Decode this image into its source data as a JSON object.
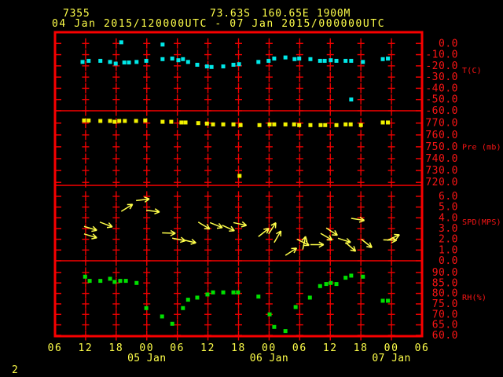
{
  "header": {
    "station_id": "7355",
    "latitude": "73.63S",
    "longitude": "160.65E",
    "elevation": "1900M",
    "period": "04 Jan 2015/120000UTC - 07 Jan 2015/000000UTC"
  },
  "page_number": "2",
  "colors": {
    "background": "#000000",
    "border_red": "#f80000",
    "grid_red": "#ee0000",
    "tick_text_red": "#fb1515",
    "label_yellow": "#ffff4a",
    "temperature_cyan": "#00e8e8",
    "pressure_yellow": "#f2f200",
    "wind_yellow": "#ffff4a",
    "humidity_green": "#00e000"
  },
  "chart_data": {
    "type": "scatter",
    "title": "",
    "grid": "on",
    "x_axis": {
      "hours_span": 72,
      "tick_labels": [
        "06",
        "12",
        "18",
        "00",
        "06",
        "12",
        "18",
        "00",
        "06",
        "12",
        "18",
        "00",
        "06"
      ],
      "date_labels": [
        {
          "label": "05 Jan",
          "tick_index": 3
        },
        {
          "label": "06 Jan",
          "tick_index": 7
        },
        {
          "label": "07 Jan",
          "tick_index": 11
        }
      ]
    },
    "panels": [
      {
        "id": "temperature",
        "axis_label": "T(C)",
        "marker": "square",
        "color_key": "temperature_cyan",
        "ylim": [
          -60,
          10
        ],
        "ticks": [
          0,
          -10,
          -20,
          -30,
          -40,
          -50,
          -60
        ],
        "points": [
          [
            5.4,
            -16.5
          ],
          [
            6.6,
            -15.5
          ],
          [
            8.9,
            -15.5
          ],
          [
            10.8,
            -16.5
          ],
          [
            11.9,
            -18
          ],
          [
            13,
            1
          ],
          [
            13.6,
            -17
          ],
          [
            14.5,
            -17
          ],
          [
            16,
            -16.5
          ],
          [
            17.9,
            -15.5
          ],
          [
            21.1,
            -1
          ],
          [
            21.1,
            -14
          ],
          [
            23,
            -13.5
          ],
          [
            24.2,
            -15
          ],
          [
            25.1,
            -14
          ],
          [
            26.1,
            -16.5
          ],
          [
            27.9,
            -19
          ],
          [
            29.8,
            -20.5
          ],
          [
            30.7,
            -21
          ],
          [
            33,
            -20.5
          ],
          [
            35,
            -19
          ],
          [
            36.1,
            -18.5
          ],
          [
            39.9,
            -16.5
          ],
          [
            41.9,
            -15.5
          ],
          [
            43,
            -13.5
          ],
          [
            45.2,
            -12.5
          ],
          [
            47,
            -14
          ],
          [
            47.9,
            -13.5
          ],
          [
            50.1,
            -14
          ],
          [
            52,
            -15.5
          ],
          [
            52.9,
            -15.5
          ],
          [
            54.1,
            -15
          ],
          [
            55.2,
            -15.5
          ],
          [
            57,
            -15.5
          ],
          [
            58.1,
            -15.5
          ],
          [
            58.1,
            -50
          ],
          [
            60.4,
            -16.5
          ],
          [
            64.3,
            -14
          ],
          [
            65.3,
            -13.5
          ]
        ]
      },
      {
        "id": "pressure",
        "axis_label": "Pre (mb)",
        "marker": "square",
        "color_key": "pressure_yellow",
        "ylim": [
          717.5,
          780.4
        ],
        "ticks": [
          770,
          760,
          750,
          740,
          730,
          720
        ],
        "points": [
          [
            5.7,
            772.2
          ],
          [
            6.6,
            772.2
          ],
          [
            8.9,
            771.8
          ],
          [
            10.8,
            771.8
          ],
          [
            11.7,
            771.1
          ],
          [
            12.6,
            771.8
          ],
          [
            13.7,
            771.8
          ],
          [
            15.9,
            771.8
          ],
          [
            17.7,
            772.2
          ],
          [
            21.1,
            771.1
          ],
          [
            22.8,
            771.1
          ],
          [
            24.8,
            770.5
          ],
          [
            25.6,
            770.5
          ],
          [
            28.1,
            770
          ],
          [
            29.8,
            769.6
          ],
          [
            31,
            768.9
          ],
          [
            33,
            768.9
          ],
          [
            35,
            768.9
          ],
          [
            36.2,
            725.5
          ],
          [
            36.4,
            768.3
          ],
          [
            40.1,
            768.3
          ],
          [
            42.1,
            768.9
          ],
          [
            43,
            768.9
          ],
          [
            45.2,
            768.9
          ],
          [
            46.9,
            768.9
          ],
          [
            47.9,
            768.3
          ],
          [
            50.1,
            768.3
          ],
          [
            52.1,
            768.3
          ],
          [
            53,
            768.3
          ],
          [
            55.2,
            768.3
          ],
          [
            57,
            768.9
          ],
          [
            58,
            768.9
          ],
          [
            60,
            768.3
          ],
          [
            64.3,
            770.5
          ],
          [
            65.3,
            770.5
          ]
        ]
      },
      {
        "id": "wind-speed",
        "axis_label": "SPD(MPS)",
        "marker": "arrow",
        "color_key": "wind_yellow",
        "ylim": [
          0,
          7.02
        ],
        "ticks": [
          6,
          5,
          4,
          3,
          2,
          1,
          0
        ],
        "arrows": [
          [
            5.7,
            3.2,
            17
          ],
          [
            5.7,
            2.5,
            17
          ],
          [
            8.8,
            3.6,
            21
          ],
          [
            13,
            4.6,
            -32
          ],
          [
            15.9,
            5.6,
            -7
          ],
          [
            17.9,
            4.7,
            7
          ],
          [
            21,
            2.6,
            2
          ],
          [
            23,
            2.1,
            11
          ],
          [
            25.1,
            1.95,
            13
          ],
          [
            28.1,
            3.6,
            31
          ],
          [
            30.4,
            3.55,
            22
          ],
          [
            32.8,
            3.3,
            24
          ],
          [
            35,
            3.55,
            12
          ],
          [
            39.9,
            2.25,
            -38
          ],
          [
            41.9,
            2.5,
            -57
          ],
          [
            43,
            1.7,
            -60
          ],
          [
            45.2,
            0.5,
            -33
          ],
          [
            47.5,
            2,
            27
          ],
          [
            48.6,
            1.05,
            -78
          ],
          [
            50.1,
            1.5,
            0
          ],
          [
            52.1,
            2.55,
            30
          ],
          [
            53.2,
            3.05,
            33
          ],
          [
            55.5,
            2.1,
            18
          ],
          [
            57,
            1.7,
            41
          ],
          [
            58.1,
            3.95,
            9
          ],
          [
            60.1,
            2,
            38
          ],
          [
            64.4,
            1.95,
            2
          ],
          [
            65.2,
            1.9,
            -25
          ]
        ]
      },
      {
        "id": "humidity",
        "axis_label": "RH(%)",
        "marker": "square",
        "color_key": "humidity_green",
        "ylim": [
          59.6,
          95.6
        ],
        "ticks": [
          90,
          85,
          80,
          75,
          70,
          65,
          60
        ],
        "points": [
          [
            5.9,
            88
          ],
          [
            6.8,
            86
          ],
          [
            8.9,
            86
          ],
          [
            10.8,
            87
          ],
          [
            11.7,
            85.5
          ],
          [
            12.8,
            86
          ],
          [
            13.9,
            86
          ],
          [
            16,
            85
          ],
          [
            17.9,
            73
          ],
          [
            21,
            69
          ],
          [
            23,
            65.5
          ],
          [
            25.1,
            73
          ],
          [
            26.1,
            77
          ],
          [
            27.9,
            78
          ],
          [
            29.9,
            79.5
          ],
          [
            31,
            80.5
          ],
          [
            33,
            80.5
          ],
          [
            35,
            80.5
          ],
          [
            35.9,
            80.5
          ],
          [
            39.9,
            78.5
          ],
          [
            42.1,
            70
          ],
          [
            43,
            64
          ],
          [
            45.2,
            62
          ],
          [
            47.2,
            73.5
          ],
          [
            50,
            78
          ],
          [
            52,
            83.5
          ],
          [
            53.2,
            84.5
          ],
          [
            54.1,
            85
          ],
          [
            55.2,
            84.5
          ],
          [
            57,
            87.5
          ],
          [
            58.1,
            88.5
          ],
          [
            60.4,
            88
          ],
          [
            64.3,
            76.5
          ],
          [
            65.3,
            76.5
          ]
        ]
      }
    ]
  }
}
